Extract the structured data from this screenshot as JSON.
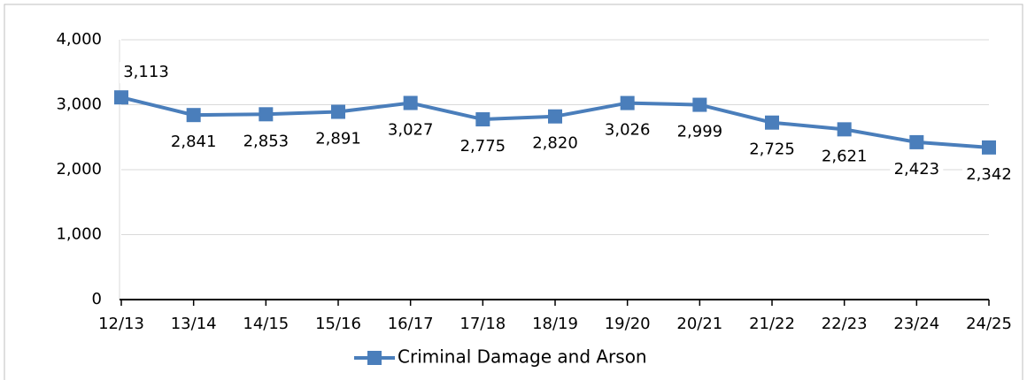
{
  "chart_data": {
    "type": "line",
    "categories": [
      "12/13",
      "13/14",
      "14/15",
      "15/16",
      "16/17",
      "17/18",
      "18/19",
      "19/20",
      "20/21",
      "21/22",
      "22/23",
      "23/24",
      "24/25"
    ],
    "series": [
      {
        "name": "Criminal Damage and Arson",
        "color": "#4a7ebb",
        "values": [
          3113,
          2841,
          2853,
          2891,
          3027,
          2775,
          2820,
          3026,
          2999,
          2725,
          2621,
          2423,
          2342
        ],
        "value_labels": [
          "3,113",
          "2,841",
          "2,853",
          "2,891",
          "3,027",
          "2,775",
          "2,820",
          "3,026",
          "2,999",
          "2,725",
          "2,621",
          "2,423",
          "2,342"
        ]
      }
    ],
    "ylim": [
      0,
      4000
    ],
    "yticks": [
      {
        "value": 0,
        "label": "0"
      },
      {
        "value": 1000,
        "label": "1,000"
      },
      {
        "value": 2000,
        "label": "2,000"
      },
      {
        "value": 3000,
        "label": "3,000"
      },
      {
        "value": 4000,
        "label": "4,000"
      }
    ],
    "grid": true,
    "legend": "bottom"
  }
}
